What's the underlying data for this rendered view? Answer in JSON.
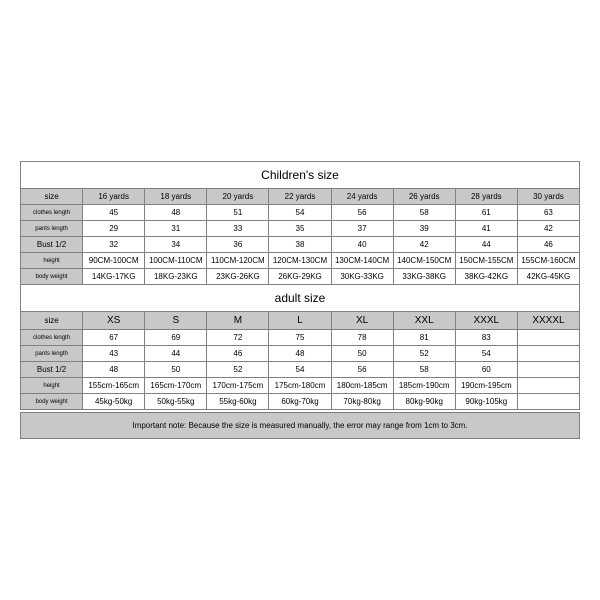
{
  "children": {
    "title": "Children's size",
    "headers": [
      "size",
      "16 yards",
      "18 yards",
      "20 yards",
      "22 yards",
      "24 yards",
      "26 yards",
      "28 yards",
      "30 yards"
    ],
    "row_labels": [
      "clothes length",
      "pants length",
      "Bust 1/2",
      "height",
      "body weight"
    ],
    "rows": [
      [
        "45",
        "48",
        "51",
        "54",
        "56",
        "58",
        "61",
        "63"
      ],
      [
        "29",
        "31",
        "33",
        "35",
        "37",
        "39",
        "41",
        "42"
      ],
      [
        "32",
        "34",
        "36",
        "38",
        "40",
        "42",
        "44",
        "46"
      ],
      [
        "90CM-100CM",
        "100CM-110CM",
        "110CM-120CM",
        "120CM-130CM",
        "130CM-140CM",
        "140CM-150CM",
        "150CM-155CM",
        "155CM-160CM"
      ],
      [
        "14KG-17KG",
        "18KG-23KG",
        "23KG-26KG",
        "26KG-29KG",
        "30KG-33KG",
        "33KG-38KG",
        "38KG-42KG",
        "42KG-45KG"
      ]
    ]
  },
  "adult": {
    "title": "adult size",
    "headers": [
      "size",
      "XS",
      "S",
      "M",
      "L",
      "XL",
      "XXL",
      "XXXL",
      "XXXXL"
    ],
    "row_labels": [
      "clothes length",
      "pants length",
      "Bust 1/2",
      "height",
      "body weight"
    ],
    "rows": [
      [
        "67",
        "69",
        "72",
        "75",
        "78",
        "81",
        "83",
        ""
      ],
      [
        "43",
        "44",
        "46",
        "48",
        "50",
        "52",
        "54",
        ""
      ],
      [
        "48",
        "50",
        "52",
        "54",
        "56",
        "58",
        "60",
        ""
      ],
      [
        "155cm-165cm",
        "165cm-170cm",
        "170cm-175cm",
        "175cm-180cm",
        "180cm-185cm",
        "185cm-190cm",
        "190cm-195cm",
        ""
      ],
      [
        "45kg-50kg",
        "50kg-55kg",
        "55kg-60kg",
        "60kg-70kg",
        "70kg-80kg",
        "80kg-90kg",
        "90kg-105kg",
        ""
      ]
    ]
  },
  "note": "Important note: Because the size is measured manually, the error may range from 1cm to 3cm."
}
